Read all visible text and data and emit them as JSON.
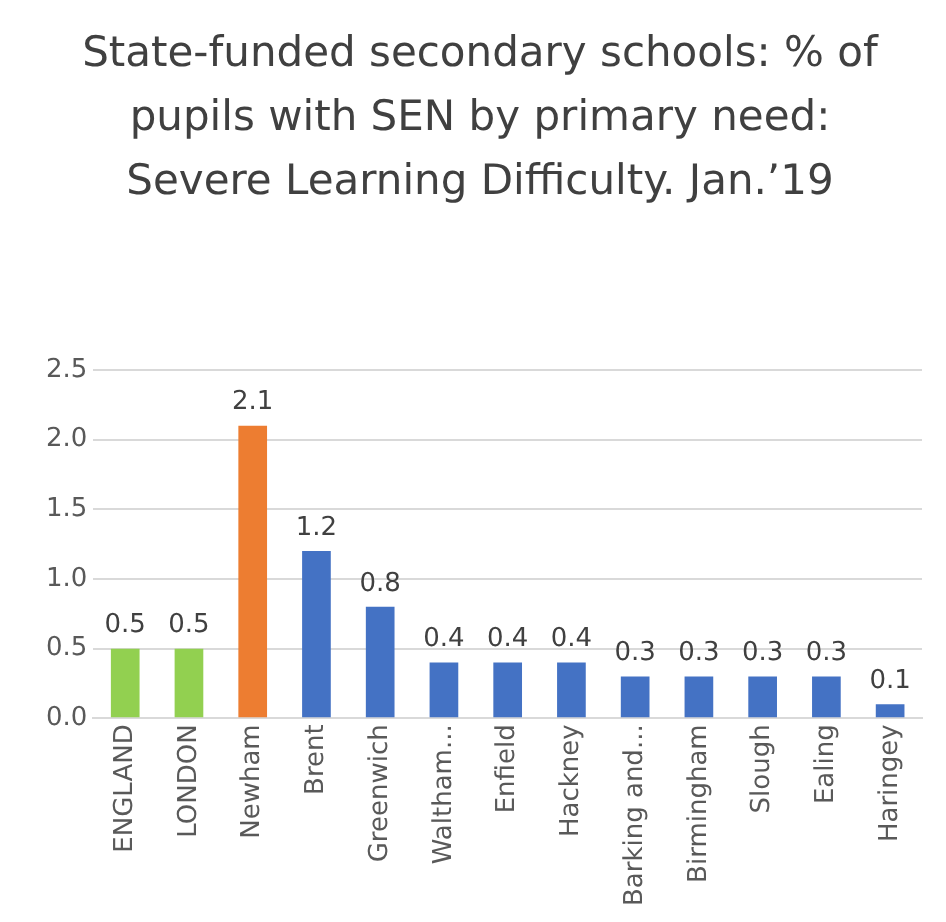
{
  "chart_data": {
    "type": "bar",
    "title": "State-funded secondary schools: % of pupils with SEN by primary need: Severe Learning Difficulty. Jan.’19",
    "categories": [
      "ENGLAND",
      "LONDON",
      "Newham",
      "Brent",
      "Greenwich",
      "Waltham...",
      "Enfield",
      "Hackney",
      "Barking and...",
      "Birmingham",
      "Slough",
      "Ealing",
      "Haringey"
    ],
    "values": [
      0.5,
      0.5,
      2.1,
      1.2,
      0.8,
      0.4,
      0.4,
      0.4,
      0.3,
      0.3,
      0.3,
      0.3,
      0.1
    ],
    "colors": [
      "#92d050",
      "#92d050",
      "#ed7d31",
      "#4472c4",
      "#4472c4",
      "#4472c4",
      "#4472c4",
      "#4472c4",
      "#4472c4",
      "#4472c4",
      "#4472c4",
      "#4472c4",
      "#4472c4"
    ],
    "ylim": [
      0,
      2.5
    ],
    "yticks": [
      {
        "value": 0,
        "label": "0.0"
      },
      {
        "value": 0.5,
        "label": "0.5"
      },
      {
        "value": 1,
        "label": "1.0"
      },
      {
        "value": 1.5,
        "label": "1.5"
      },
      {
        "value": 2,
        "label": "2.0"
      },
      {
        "value": 2.5,
        "label": "2.5"
      }
    ],
    "grid": "y",
    "data_labels": true,
    "legend": false
  }
}
